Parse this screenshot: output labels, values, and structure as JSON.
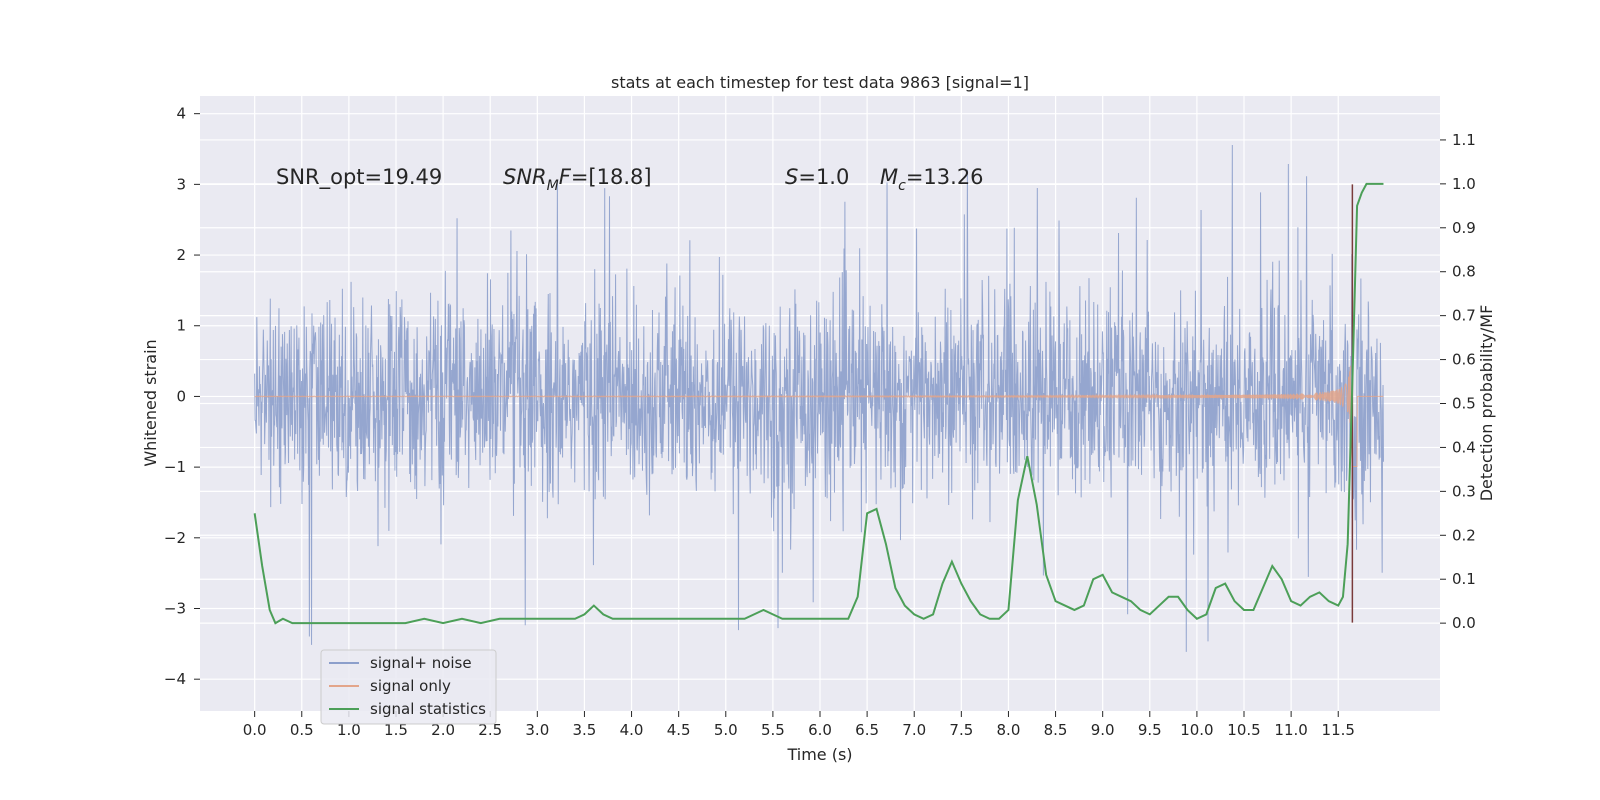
{
  "chart_data": {
    "type": "line",
    "title": "stats at each timestep for test data 9863 [signal=1]",
    "xlabel": "Time (s)",
    "ylabel_left": "Whitened strain",
    "ylabel_right": "Detection probability/MF",
    "xlim": [
      -0.58,
      12.58
    ],
    "ylim_left": [
      -4.45,
      4.25
    ],
    "ylim_right": [
      -0.2,
      1.2
    ],
    "x_ticks": [
      "0.0",
      "0.5",
      "1.0",
      "1.5",
      "2.0",
      "2.5",
      "3.0",
      "3.5",
      "4.0",
      "4.5",
      "5.0",
      "5.5",
      "6.0",
      "6.5",
      "7.0",
      "7.5",
      "8.0",
      "8.5",
      "9.0",
      "9.5",
      "10.0",
      "10.5",
      "11.0",
      "11.5"
    ],
    "y_ticks_left": [
      "4",
      "3",
      "2",
      "1",
      "0",
      "−1",
      "−2",
      "−3",
      "−4"
    ],
    "y_ticks_right": [
      "1.1",
      "1.0",
      "0.9",
      "0.8",
      "0.7",
      "0.6",
      "0.5",
      "0.4",
      "0.3",
      "0.2",
      "0.1",
      "0.0"
    ],
    "grid": true,
    "legend_position": "lower-left",
    "annotations": {
      "snr_opt": "SNR_opt=19.49",
      "snr_mf_sym": "SNR",
      "snr_mf_sub": "M",
      "snr_mf_sym2": "F",
      "snr_mf_val": "=[18.8]",
      "s_sym": "S",
      "s_val": "=1.0",
      "mc_sym": "M",
      "mc_sub": "c",
      "mc_val": "=13.26"
    },
    "series": [
      {
        "name": "signal+ noise",
        "color": "#8c9fcb",
        "description_type": "noisy strain, approx ±2 with spikes",
        "time_range": [
          0.0,
          11.98
        ],
        "envelope": 1.15,
        "max_spike": 3.85,
        "min_spike": -4.1
      },
      {
        "name": "signal only",
        "color": "#e3a58a",
        "time_range": [
          0.0,
          11.98
        ],
        "merger_time": 11.65,
        "peak_amplitude": 3.0
      },
      {
        "name": "signal statistics",
        "color": "#4c9f58",
        "x": [
          0.0,
          0.08,
          0.16,
          0.22,
          0.3,
          0.4,
          0.5,
          0.6,
          0.8,
          1.0,
          1.2,
          1.4,
          1.6,
          1.8,
          2.0,
          2.2,
          2.4,
          2.6,
          2.8,
          3.0,
          3.2,
          3.4,
          3.5,
          3.6,
          3.7,
          3.8,
          4.0,
          4.2,
          4.4,
          4.6,
          4.8,
          5.0,
          5.2,
          5.3,
          5.4,
          5.5,
          5.6,
          5.7,
          5.8,
          6.0,
          6.2,
          6.3,
          6.4,
          6.5,
          6.6,
          6.7,
          6.8,
          6.9,
          7.0,
          7.1,
          7.2,
          7.3,
          7.4,
          7.5,
          7.6,
          7.7,
          7.8,
          7.9,
          8.0,
          8.1,
          8.2,
          8.3,
          8.4,
          8.5,
          8.6,
          8.7,
          8.8,
          8.9,
          9.0,
          9.1,
          9.2,
          9.3,
          9.4,
          9.5,
          9.6,
          9.7,
          9.8,
          9.9,
          10.0,
          10.1,
          10.2,
          10.3,
          10.4,
          10.5,
          10.6,
          10.7,
          10.8,
          10.9,
          11.0,
          11.1,
          11.2,
          11.3,
          11.4,
          11.5,
          11.55,
          11.6,
          11.65,
          11.7,
          11.75,
          11.8,
          11.9,
          11.98
        ],
        "values": [
          0.25,
          0.13,
          0.03,
          0.0,
          0.01,
          0.0,
          0.0,
          0.0,
          0.0,
          0.0,
          0.0,
          0.0,
          0.0,
          0.01,
          0.0,
          0.01,
          0.0,
          0.01,
          0.01,
          0.01,
          0.01,
          0.01,
          0.02,
          0.04,
          0.02,
          0.01,
          0.01,
          0.01,
          0.01,
          0.01,
          0.01,
          0.01,
          0.01,
          0.02,
          0.03,
          0.02,
          0.01,
          0.01,
          0.01,
          0.01,
          0.01,
          0.01,
          0.06,
          0.25,
          0.26,
          0.18,
          0.08,
          0.04,
          0.02,
          0.01,
          0.02,
          0.09,
          0.14,
          0.09,
          0.05,
          0.02,
          0.01,
          0.01,
          0.03,
          0.28,
          0.38,
          0.27,
          0.11,
          0.05,
          0.04,
          0.03,
          0.04,
          0.1,
          0.11,
          0.07,
          0.06,
          0.05,
          0.03,
          0.02,
          0.04,
          0.06,
          0.06,
          0.03,
          0.01,
          0.02,
          0.08,
          0.09,
          0.05,
          0.03,
          0.03,
          0.08,
          0.13,
          0.1,
          0.05,
          0.04,
          0.06,
          0.07,
          0.05,
          0.04,
          0.06,
          0.18,
          0.55,
          0.95,
          0.98,
          1.0,
          1.0,
          1.0
        ]
      }
    ]
  }
}
